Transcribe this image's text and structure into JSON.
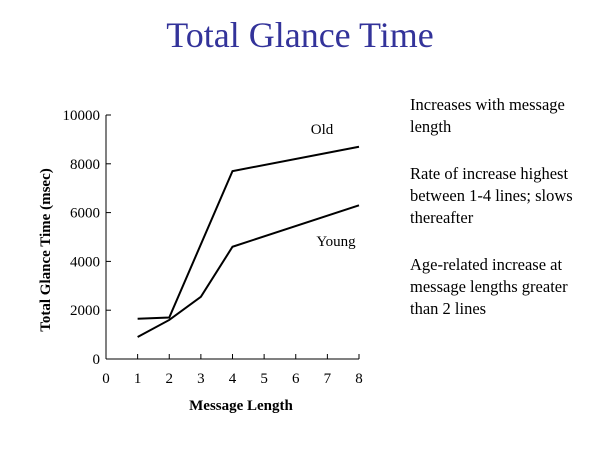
{
  "slide": {
    "title": "Total Glance Time",
    "notes": [
      "Increases with message length",
      "Rate of increase highest between 1-4 lines; slows thereafter",
      "Age-related increase at message lengths greater than 2 lines"
    ]
  },
  "chart_data": {
    "type": "line",
    "title": "",
    "xlabel": "Message Length",
    "ylabel": "Total Glance Time (msec)",
    "xlim": [
      0,
      8
    ],
    "ylim": [
      0,
      10000
    ],
    "xticks": [
      0,
      1,
      2,
      3,
      4,
      5,
      6,
      7,
      8
    ],
    "yticks": [
      0,
      2000,
      4000,
      6000,
      8000,
      10000
    ],
    "grid": false,
    "legend": "direct labels on lines",
    "series": [
      {
        "name": "Old",
        "color": "#000000",
        "x": [
          1,
          2,
          4,
          8
        ],
        "y": [
          1650,
          1700,
          7700,
          8700
        ]
      },
      {
        "name": "Young",
        "color": "#000000",
        "x": [
          1,
          2,
          3,
          4,
          8
        ],
        "y": [
          900,
          1600,
          2550,
          4600,
          6300
        ]
      }
    ]
  }
}
